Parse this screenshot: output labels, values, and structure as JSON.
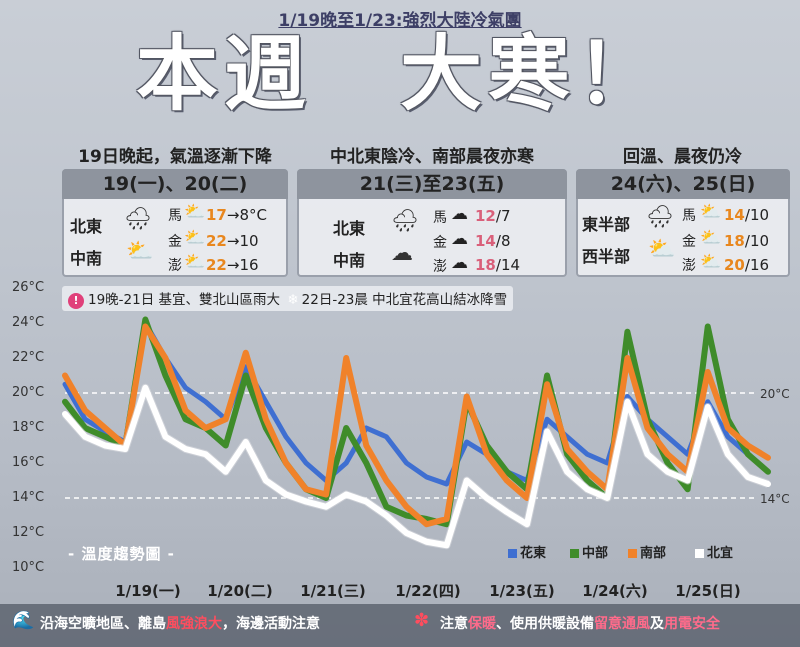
{
  "header": {
    "subtitle": "1/19晚至1/23:強烈大陸冷氣團",
    "headline": "本週　大寒！"
  },
  "columns": [
    {
      "heading": "19日晚起，氣溫逐漸下降",
      "tab": "19(一)、20(二)",
      "regions": [
        {
          "name": "北東",
          "icon": "rain-cloud-icon"
        },
        {
          "name": "中南",
          "icon": "partly-sunny-icon"
        }
      ],
      "islands": [
        {
          "name": "馬",
          "icon": "partly-sunny-icon",
          "hi": "17",
          "lo": "8°C",
          "sep": "→"
        },
        {
          "name": "金",
          "icon": "partly-sunny-icon",
          "hi": "22",
          "lo": "10",
          "sep": "→"
        },
        {
          "name": "澎",
          "icon": "partly-sunny-icon",
          "hi": "22",
          "lo": "16",
          "sep": "→"
        }
      ]
    },
    {
      "heading": "中北東陰冷、南部晨夜亦寒",
      "tab": "21(三)至23(五)",
      "regions": [
        {
          "name": "北東",
          "icon": "rain-cloud-icon"
        },
        {
          "name": "中南",
          "icon": "cloud-icon"
        }
      ],
      "islands": [
        {
          "name": "馬",
          "icon": "cloud-icon",
          "hi": "12",
          "lo": "7",
          "sep": "/"
        },
        {
          "name": "金",
          "icon": "cloud-icon",
          "hi": "14",
          "lo": "8",
          "sep": "/"
        },
        {
          "name": "澎",
          "icon": "cloud-icon",
          "hi": "18",
          "lo": "14",
          "sep": "/"
        }
      ]
    },
    {
      "heading": "回溫、晨夜仍冷",
      "tab": "24(六)、25(日)",
      "regions": [
        {
          "name": "東半部",
          "icon": "rain-cloud-icon"
        },
        {
          "name": "西半部",
          "icon": "partly-sunny-icon"
        }
      ],
      "islands": [
        {
          "name": "馬",
          "icon": "partly-sunny-icon",
          "hi": "14",
          "lo": "10",
          "sep": "/"
        },
        {
          "name": "金",
          "icon": "partly-sunny-icon",
          "hi": "18",
          "lo": "10",
          "sep": "/"
        },
        {
          "name": "澎",
          "icon": "partly-sunny-icon",
          "hi": "20",
          "lo": "16",
          "sep": "/"
        }
      ]
    }
  ],
  "alert": {
    "icon": "exclamation-icon",
    "text1": "19晚-21日 基宜、雙北山區雨大",
    "icon2": "snowflake-icon",
    "text2": "22日-23晨 中北宜花高山結冰降雪"
  },
  "chart_title": "- 溫度趨勢圖 -",
  "footer": {
    "left_a": "沿海空曠地區、離島",
    "left_red": "風強浪大",
    "left_b": "，海邊活動注意",
    "right_a": "注意",
    "right_p1": "保暖",
    "right_b": "、使用供暖設備",
    "right_p2": "留意通風",
    "right_c": "及",
    "right_p3": "用電安全"
  },
  "chart_data": {
    "type": "line",
    "ylim": [
      10,
      26
    ],
    "yticks": [
      "10°C",
      "12°C",
      "14°C",
      "16°C",
      "18°C",
      "20°C",
      "22°C",
      "24°C",
      "26°C"
    ],
    "xticks": [
      "1/19(一)",
      "1/20(二)",
      "1/21(三)",
      "1/22(四)",
      "1/23(五)",
      "1/24(六)",
      "1/25(日)"
    ],
    "reference_lines": [
      {
        "value": 20,
        "label": "20°C"
      },
      {
        "value": 14,
        "label": "14°C"
      }
    ],
    "colors": {
      "花東": "#3f6fd1",
      "中部": "#3f8c2a",
      "南部": "#f0822a",
      "北宜": "#ffffff"
    },
    "series": [
      {
        "name": "花東",
        "values": [
          20.5,
          18.5,
          17.8,
          17.2,
          24.0,
          22.0,
          20.3,
          19.5,
          18.5,
          21.5,
          19.5,
          17.5,
          16.0,
          15.0,
          16.0,
          18.0,
          17.5,
          16.0,
          15.2,
          14.8,
          17.2,
          16.5,
          15.5,
          15.0,
          18.5,
          17.5,
          16.5,
          16.0,
          19.8,
          18.5,
          17.5,
          16.5,
          19.5,
          17.5,
          16.5,
          15.5
        ]
      },
      {
        "name": "中部",
        "values": [
          19.5,
          18.0,
          17.5,
          17.0,
          24.2,
          21.0,
          18.5,
          18.0,
          17.0,
          21.0,
          18.0,
          16.0,
          14.5,
          14.0,
          18.0,
          16.0,
          13.5,
          13.0,
          12.8,
          12.5,
          19.5,
          17.0,
          15.5,
          14.5,
          21.0,
          16.5,
          15.0,
          14.0,
          23.5,
          18.5,
          16.0,
          14.5,
          23.8,
          18.5,
          16.5,
          15.5
        ]
      },
      {
        "name": "南部",
        "values": [
          21.0,
          19.0,
          18.0,
          17.0,
          23.8,
          22.0,
          19.0,
          18.0,
          18.5,
          22.3,
          18.5,
          16.0,
          14.5,
          14.2,
          22.0,
          17.0,
          15.0,
          13.5,
          12.5,
          12.8,
          19.8,
          16.5,
          15.0,
          14.0,
          20.5,
          16.8,
          15.5,
          14.5,
          22.0,
          18.0,
          16.5,
          15.5,
          21.2,
          18.0,
          17.0,
          16.3
        ]
      },
      {
        "name": "北宜",
        "values": [
          18.8,
          17.5,
          17.0,
          16.8,
          20.3,
          17.5,
          16.8,
          16.5,
          15.5,
          17.2,
          15.0,
          14.2,
          13.8,
          13.5,
          14.2,
          13.8,
          13.0,
          12.0,
          11.5,
          11.3,
          15.0,
          14.0,
          13.2,
          12.5,
          17.8,
          15.5,
          14.5,
          14.0,
          19.5,
          16.5,
          15.5,
          15.0,
          19.2,
          16.5,
          15.2,
          14.8
        ]
      }
    ]
  }
}
